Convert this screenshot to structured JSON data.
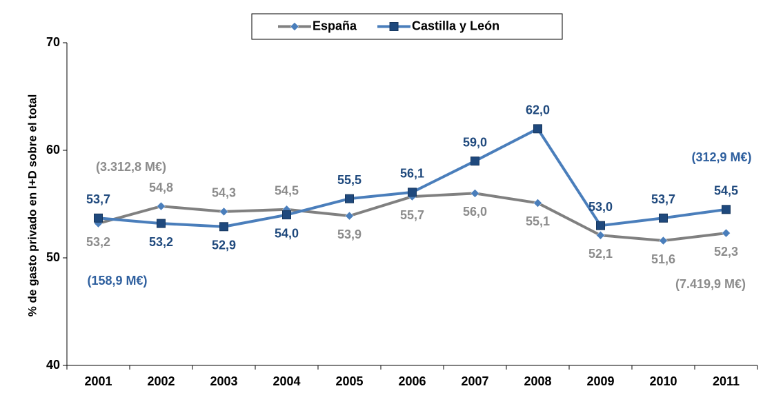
{
  "chart_data": {
    "type": "line",
    "y_label": "% de gasto privado en I+D sobre el total",
    "categories": [
      "2001",
      "2002",
      "2003",
      "2004",
      "2005",
      "2006",
      "2007",
      "2008",
      "2009",
      "2010",
      "2011"
    ],
    "series": [
      {
        "name": "España",
        "color": "#808080",
        "label_color": "#8c8c8c",
        "marker": "diamond",
        "marker_color": "#4a7ebb",
        "values": [
          53.2,
          54.8,
          54.3,
          54.5,
          53.9,
          55.7,
          56.0,
          55.1,
          52.1,
          51.6,
          52.3
        ],
        "value_labels": [
          "53,2",
          "54,8",
          "54,3",
          "54,5",
          "53,9",
          "55,7",
          "56,0",
          "55,1",
          "52,1",
          "51,6",
          "52,3"
        ]
      },
      {
        "name": "Castilla y León",
        "color": "#4a7ebb",
        "label_color": "#1f497d",
        "marker": "square",
        "marker_color": "#1f497d",
        "values": [
          53.7,
          53.2,
          52.9,
          54.0,
          55.5,
          56.1,
          59.0,
          62.0,
          53.0,
          53.7,
          54.5
        ],
        "value_labels": [
          "53,7",
          "53,2",
          "52,9",
          "54,0",
          "55,5",
          "56,1",
          "59,0",
          "62,0",
          "53,0",
          "53,7",
          "54,5"
        ]
      }
    ],
    "annotations": [
      {
        "text": "(3.312,8 M€)",
        "color": "#8c8c8c"
      },
      {
        "text": "(158,9 M€)",
        "color": "#2e5f9e"
      },
      {
        "text": "(312,9 M€)",
        "color": "#2e5f9e"
      },
      {
        "text": "(7.419,9 M€)",
        "color": "#8c8c8c"
      }
    ],
    "ylim": [
      40,
      70
    ],
    "yticks": [
      40,
      50,
      60,
      70
    ],
    "grid": false,
    "legend": "top"
  }
}
